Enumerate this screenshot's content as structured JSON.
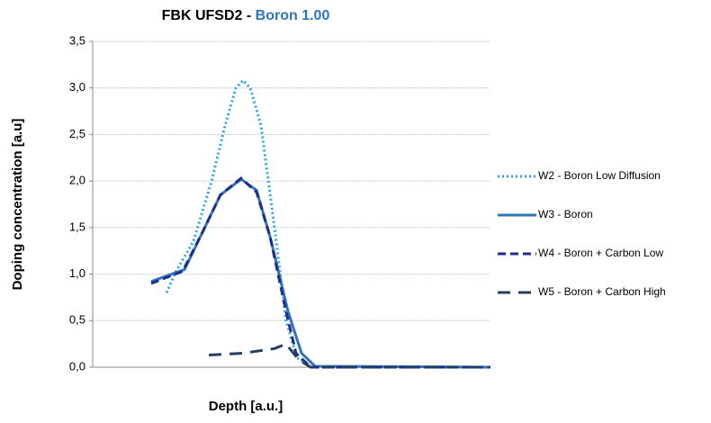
{
  "chart_data": {
    "type": "line",
    "title": "FBK UFSD2 -",
    "title_highlight": "Boron 1.00",
    "xlabel": "Depth [a.u.]",
    "ylabel": "Doping concentration [a.u]",
    "xlim": [
      0,
      100
    ],
    "ylim": [
      0,
      3.5
    ],
    "yticks": [
      {
        "value": 0,
        "label": "0,0"
      },
      {
        "value": 0.5,
        "label": "0,5"
      },
      {
        "value": 1,
        "label": "1,0"
      },
      {
        "value": 1.5,
        "label": "1,5"
      },
      {
        "value": 2,
        "label": "2,0"
      },
      {
        "value": 2.5,
        "label": "2,5"
      },
      {
        "value": 3,
        "label": "3,0"
      },
      {
        "value": 3.5,
        "label": "3,5"
      }
    ],
    "grid": true,
    "legend": "right",
    "series": [
      {
        "name": "W2 - Boron Low Diffusion",
        "color": "#2da0e8",
        "style": "dotted",
        "x": [
          18.6,
          20.8,
          25.3,
          29.9,
          33.3,
          36.0,
          37.8,
          39.6,
          42.3,
          45.7,
          48.6,
          51.4,
          54.8
        ],
        "values": [
          0.8,
          1.02,
          1.35,
          2.0,
          2.6,
          3.0,
          3.08,
          3.0,
          2.6,
          1.5,
          0.5,
          0.1,
          0.0
        ]
      },
      {
        "name": "W3 - Boron",
        "color": "#2e75b6",
        "style": "solid",
        "x": [
          14.7,
          23.1,
          27.6,
          32.1,
          37.3,
          41.2,
          44.6,
          49.1,
          52.5,
          55.9,
          100
        ],
        "values": [
          0.92,
          1.05,
          1.45,
          1.85,
          2.02,
          1.9,
          1.4,
          0.6,
          0.15,
          0.01,
          0.0
        ]
      },
      {
        "name": "W4 - Boron + Carbon Low",
        "color": "#1f2d8c",
        "style": "dashed",
        "x": [
          14.7,
          22.6,
          27.6,
          32.1,
          37.3,
          41.2,
          44.6,
          48.6,
          51.1,
          54.8,
          100
        ],
        "values": [
          0.9,
          1.03,
          1.45,
          1.85,
          2.03,
          1.88,
          1.4,
          0.6,
          0.15,
          0.0,
          0.0
        ]
      },
      {
        "name": "W5 - Boron + Carbon High",
        "color": "#243f60",
        "style": "longdash",
        "x": [
          29.2,
          37.8,
          45.7,
          48.6,
          51.8,
          54.8,
          100
        ],
        "values": [
          0.13,
          0.15,
          0.2,
          0.25,
          0.08,
          0.0,
          0.0
        ]
      }
    ]
  }
}
